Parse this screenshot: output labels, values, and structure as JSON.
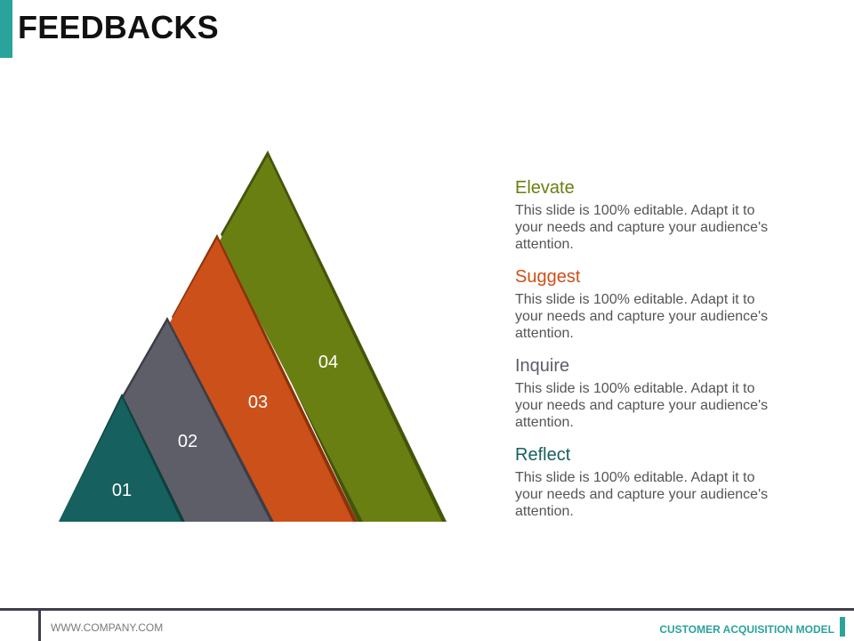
{
  "header": {
    "title": "FEEDBACKS"
  },
  "pyramid": {
    "layers": [
      {
        "number": "01",
        "color": "#16605f",
        "shadow": "#0d3f3e"
      },
      {
        "number": "02",
        "color": "#5d5e68",
        "shadow": "#3c3d45"
      },
      {
        "number": "03",
        "color": "#cc5019",
        "shadow": "#8e3208"
      },
      {
        "number": "04",
        "color": "#6a7f12",
        "shadow": "#44540a"
      }
    ]
  },
  "items": [
    {
      "title": "Elevate",
      "color": "#6a7f12",
      "description": "This slide is 100% editable. Adapt it to your needs and capture your audience's attention."
    },
    {
      "title": "Suggest",
      "color": "#cc5019",
      "description": "This slide is 100% editable. Adapt it to your needs and capture your audience's attention."
    },
    {
      "title": "Inquire",
      "color": "#5d5e68",
      "description": "This slide is 100% editable. Adapt it to your needs and capture your audience's attention."
    },
    {
      "title": "Reflect",
      "color": "#16605f",
      "description": "This slide is 100% editable. Adapt it to your needs and capture your audience's attention."
    }
  ],
  "footer": {
    "url": "WWW.COMPANY.COM",
    "deck_title": "CUSTOMER ACQUISITION MODEL",
    "accent_color": "#2aa39b"
  }
}
